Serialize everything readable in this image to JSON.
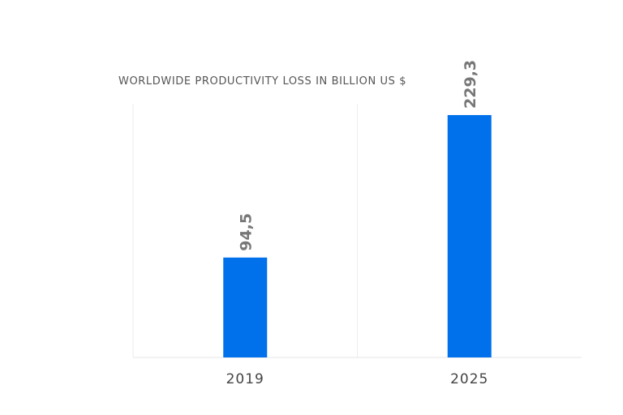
{
  "chart_data": {
    "type": "bar",
    "title": "WORLDWIDE PRODUCTIVITY LOSS IN BILLION US $",
    "xlabel": "",
    "ylabel": "",
    "categories": [
      "2019",
      "2025"
    ],
    "values": [
      94.5,
      229.3
    ],
    "value_labels": [
      "94,5",
      "229,3"
    ],
    "ylim": [
      0,
      240
    ],
    "grid": true,
    "legend": "none",
    "bar_color": "#0070EB"
  }
}
